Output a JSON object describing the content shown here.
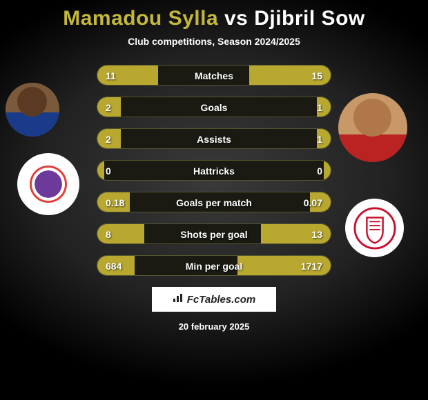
{
  "title": {
    "player1": "Mamadou Sylla",
    "vs": "vs",
    "player2": "Djibril Sow"
  },
  "subtitle": "Club competitions, Season 2024/2025",
  "colors": {
    "bar_left": "#b8a830",
    "bar_right": "#b8a830",
    "track": "#1a1a12",
    "title_p1": "#c3b83a",
    "title_p2": "#ffffff",
    "text": "#ffffff"
  },
  "bar_style": {
    "height": 30,
    "radius": 16,
    "gap": 16,
    "font_size": 14
  },
  "stats": [
    {
      "label": "Matches",
      "left_text": "11",
      "right_text": "15",
      "left_pct": 26,
      "right_pct": 35
    },
    {
      "label": "Goals",
      "left_text": "2",
      "right_text": "1",
      "left_pct": 10,
      "right_pct": 6
    },
    {
      "label": "Assists",
      "left_text": "2",
      "right_text": "1",
      "left_pct": 10,
      "right_pct": 6
    },
    {
      "label": "Hattricks",
      "left_text": "0",
      "right_text": "0",
      "left_pct": 3,
      "right_pct": 3
    },
    {
      "label": "Goals per match",
      "left_text": "0.18",
      "right_text": "0.07",
      "left_pct": 14,
      "right_pct": 9
    },
    {
      "label": "Shots per goal",
      "left_text": "8",
      "right_text": "13",
      "left_pct": 20,
      "right_pct": 30
    },
    {
      "label": "Min per goal",
      "left_text": "684",
      "right_text": "1717",
      "left_pct": 16,
      "right_pct": 40
    }
  ],
  "logo_text": "FcTables.com",
  "date": "20 february 2025",
  "crests": {
    "left": {
      "bg": "#ffffff",
      "inner": "#6b3a9a",
      "accent": "#e0403a"
    },
    "right": {
      "bg": "#ffffff",
      "stroke": "#c8102e"
    }
  }
}
